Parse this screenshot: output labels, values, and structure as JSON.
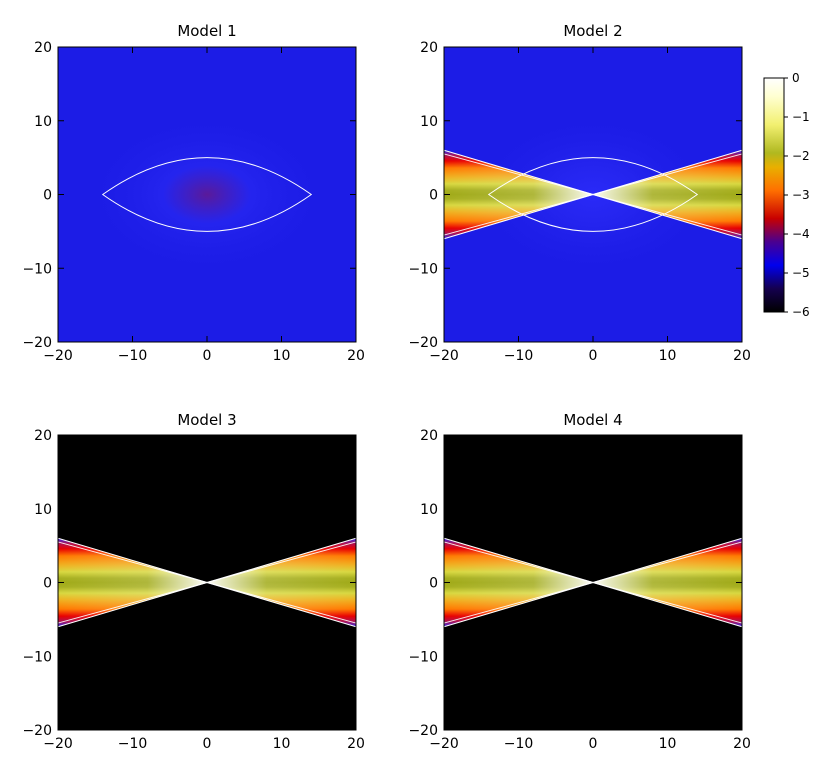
{
  "chart_data": [
    {
      "type": "heatmap",
      "title": "Model 1",
      "xlim": [
        -20,
        20
      ],
      "ylim": [
        -20,
        20
      ],
      "xticks": [
        -20,
        -10,
        0,
        10,
        20
      ],
      "yticks": [
        -20,
        -10,
        0,
        10,
        20
      ],
      "background_level": -5,
      "density_structure": "round-envelope",
      "core_value": -4.5,
      "contour_extent_x": 14,
      "contour_extent_y": 5
    },
    {
      "type": "heatmap",
      "title": "Model 2",
      "xlim": [
        -20,
        20
      ],
      "ylim": [
        -20,
        20
      ],
      "xticks": [
        -20,
        -10,
        0,
        10,
        20
      ],
      "yticks": [
        -20,
        -10,
        0,
        10,
        20
      ],
      "background_level": -5,
      "density_structure": "round-envelope-plus-wedge",
      "wedge_edge_at_x20": 6,
      "contour_extent_x": 14,
      "contour_extent_y": 5
    },
    {
      "type": "heatmap",
      "title": "Model 3",
      "xlim": [
        -20,
        20
      ],
      "ylim": [
        -20,
        20
      ],
      "xticks": [
        -20,
        -10,
        0,
        10,
        20
      ],
      "yticks": [
        -20,
        -10,
        0,
        10,
        20
      ],
      "background_level": -6,
      "density_structure": "wedge",
      "wedge_edge_at_x20": 6
    },
    {
      "type": "heatmap",
      "title": "Model 4",
      "xlim": [
        -20,
        20
      ],
      "ylim": [
        -20,
        20
      ],
      "xticks": [
        -20,
        -10,
        0,
        10,
        20
      ],
      "yticks": [
        -20,
        -10,
        0,
        10,
        20
      ],
      "background_level": -6,
      "density_structure": "wedge",
      "wedge_edge_at_x20": 6
    }
  ],
  "colorbar": {
    "range": [
      -6,
      0
    ],
    "ticks": [
      "0",
      "-1",
      "-2",
      "-3",
      "-4",
      "-5",
      "-6"
    ],
    "colors": [
      "#000000",
      "#1a0070",
      "#0000ee",
      "#c80000",
      "#ff8000",
      "#d2d21e",
      "#ffffa0",
      "#ffffff"
    ]
  }
}
